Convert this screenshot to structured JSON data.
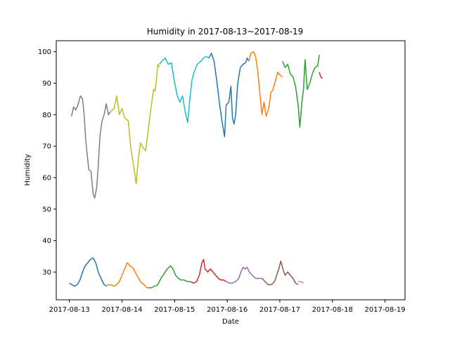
{
  "chart_data": {
    "type": "line",
    "title": "Humidity in 2017-08-13~2017-08-19",
    "xlabel": "Date",
    "ylabel": "Humidity",
    "x_ticks": [
      "2017-08-13",
      "2017-08-14",
      "2017-08-15",
      "2017-08-16",
      "2017-08-17",
      "2017-08-18",
      "2017-08-19"
    ],
    "y_ticks": [
      30,
      40,
      50,
      60,
      70,
      80,
      90,
      100
    ],
    "xlim_days": [
      -0.25,
      6.38
    ],
    "ylim": [
      21.2,
      103.5
    ],
    "grid": false,
    "legend": "none",
    "series": [
      {
        "color": "#7f7f7f",
        "points": [
          [
            0.04,
            79.5
          ],
          [
            0.08,
            82.5
          ],
          [
            0.12,
            81.5
          ],
          [
            0.17,
            83.5
          ],
          [
            0.21,
            86
          ],
          [
            0.25,
            85
          ],
          [
            0.28,
            80
          ],
          [
            0.31,
            72
          ],
          [
            0.34,
            67
          ],
          [
            0.37,
            62.5
          ],
          [
            0.41,
            62
          ],
          [
            0.45,
            55
          ],
          [
            0.48,
            53.5
          ],
          [
            0.52,
            57
          ],
          [
            0.55,
            64
          ],
          [
            0.58,
            73
          ],
          [
            0.62,
            78
          ],
          [
            0.66,
            80
          ],
          [
            0.7,
            83.5
          ],
          [
            0.74,
            80
          ],
          [
            0.78,
            81
          ]
        ]
      },
      {
        "color": "#bcbd22",
        "points": [
          [
            0.78,
            81
          ],
          [
            0.85,
            82
          ],
          [
            0.9,
            86
          ],
          [
            0.95,
            80
          ],
          [
            1.0,
            82
          ],
          [
            1.05,
            79
          ],
          [
            1.12,
            78
          ],
          [
            1.17,
            69
          ],
          [
            1.22,
            64
          ],
          [
            1.27,
            58
          ],
          [
            1.31,
            66
          ],
          [
            1.35,
            71
          ],
          [
            1.4,
            69.5
          ],
          [
            1.45,
            68.5
          ],
          [
            1.5,
            75.5
          ],
          [
            1.55,
            82
          ],
          [
            1.6,
            88
          ],
          [
            1.63,
            87.5
          ],
          [
            1.66,
            92
          ],
          [
            1.68,
            96
          ],
          [
            1.71,
            95
          ]
        ]
      },
      {
        "color": "#17becf",
        "points": [
          [
            1.71,
            96
          ],
          [
            1.76,
            97
          ],
          [
            1.82,
            98
          ],
          [
            1.88,
            96
          ],
          [
            1.94,
            96.5
          ],
          [
            1.99,
            91
          ],
          [
            2.05,
            86
          ],
          [
            2.1,
            84
          ],
          [
            2.15,
            86
          ],
          [
            2.2,
            81
          ],
          [
            2.25,
            77.5
          ],
          [
            2.29,
            85
          ],
          [
            2.33,
            91
          ],
          [
            2.38,
            94
          ],
          [
            2.43,
            96
          ],
          [
            2.5,
            97
          ],
          [
            2.55,
            98
          ],
          [
            2.6,
            98.5
          ],
          [
            2.65,
            98
          ]
        ]
      },
      {
        "color": "#1f77b4",
        "points": [
          [
            2.65,
            98
          ],
          [
            2.7,
            99.5
          ],
          [
            2.75,
            97
          ],
          [
            2.8,
            91
          ],
          [
            2.85,
            84
          ],
          [
            2.9,
            78
          ],
          [
            2.95,
            73
          ],
          [
            2.98,
            83
          ],
          [
            3.03,
            84
          ],
          [
            3.07,
            89
          ],
          [
            3.1,
            79
          ],
          [
            3.13,
            77
          ],
          [
            3.16,
            80
          ],
          [
            3.2,
            90
          ],
          [
            3.25,
            95
          ],
          [
            3.3,
            96
          ],
          [
            3.35,
            96.5
          ],
          [
            3.38,
            98
          ],
          [
            3.41,
            97
          ]
        ]
      },
      {
        "color": "#ff7f0e",
        "points": [
          [
            3.41,
            97
          ],
          [
            3.45,
            99.5
          ],
          [
            3.5,
            100
          ],
          [
            3.54,
            98.5
          ],
          [
            3.58,
            94
          ],
          [
            3.62,
            87
          ],
          [
            3.66,
            80
          ],
          [
            3.7,
            84
          ],
          [
            3.74,
            79.5
          ],
          [
            3.79,
            82
          ],
          [
            3.83,
            87
          ],
          [
            3.87,
            88
          ],
          [
            3.92,
            91
          ],
          [
            3.96,
            93.5
          ],
          [
            4.01,
            92.5
          ],
          [
            4.05,
            92
          ]
        ]
      },
      {
        "color": "#2ca02c",
        "points": [
          [
            4.05,
            97
          ],
          [
            4.1,
            95
          ],
          [
            4.15,
            96
          ],
          [
            4.2,
            93
          ],
          [
            4.25,
            92
          ],
          [
            4.3,
            89
          ],
          [
            4.35,
            83
          ],
          [
            4.38,
            76
          ],
          [
            4.42,
            84
          ],
          [
            4.45,
            88
          ],
          [
            4.48,
            97.5
          ],
          [
            4.52,
            88
          ],
          [
            4.57,
            90
          ],
          [
            4.62,
            93
          ],
          [
            4.67,
            95
          ],
          [
            4.72,
            95.5
          ],
          [
            4.75,
            99
          ]
        ]
      },
      {
        "color": "#d62728",
        "points": [
          [
            4.75,
            93.5
          ],
          [
            4.78,
            92
          ],
          [
            4.81,
            91.5
          ]
        ]
      },
      {
        "color": "#1f77b4",
        "points": [
          [
            0.0,
            26.5
          ],
          [
            0.05,
            26
          ],
          [
            0.1,
            25.5
          ],
          [
            0.15,
            26
          ],
          [
            0.2,
            27.5
          ],
          [
            0.25,
            30
          ],
          [
            0.3,
            32
          ],
          [
            0.35,
            33
          ],
          [
            0.4,
            34
          ],
          [
            0.45,
            34.5
          ],
          [
            0.5,
            33
          ],
          [
            0.55,
            30
          ],
          [
            0.6,
            28
          ],
          [
            0.66,
            26
          ],
          [
            0.72,
            25.5
          ]
        ]
      },
      {
        "color": "#ff7f0e",
        "points": [
          [
            0.72,
            26
          ],
          [
            0.78,
            26
          ],
          [
            0.85,
            25.5
          ],
          [
            0.9,
            26
          ],
          [
            0.95,
            27
          ],
          [
            1.0,
            29
          ],
          [
            1.05,
            31
          ],
          [
            1.1,
            33
          ],
          [
            1.15,
            32
          ],
          [
            1.2,
            31.5
          ],
          [
            1.25,
            30
          ],
          [
            1.3,
            28.5
          ],
          [
            1.35,
            27
          ],
          [
            1.42,
            26
          ],
          [
            1.48,
            25
          ]
        ]
      },
      {
        "color": "#2ca02c",
        "points": [
          [
            1.48,
            25
          ],
          [
            1.55,
            25
          ],
          [
            1.62,
            25.5
          ],
          [
            1.68,
            26
          ],
          [
            1.74,
            28
          ],
          [
            1.8,
            29.5
          ],
          [
            1.86,
            31
          ],
          [
            1.92,
            32
          ],
          [
            1.97,
            31
          ],
          [
            2.02,
            29
          ],
          [
            2.07,
            28
          ],
          [
            2.12,
            27.5
          ],
          [
            2.18,
            27.5
          ],
          [
            2.24,
            27
          ],
          [
            2.3,
            27
          ]
        ]
      },
      {
        "color": "#d62728",
        "points": [
          [
            2.3,
            27
          ],
          [
            2.36,
            26.5
          ],
          [
            2.42,
            27
          ],
          [
            2.47,
            29
          ],
          [
            2.52,
            33
          ],
          [
            2.55,
            34
          ],
          [
            2.58,
            31
          ],
          [
            2.63,
            30
          ],
          [
            2.68,
            31
          ],
          [
            2.73,
            30
          ],
          [
            2.78,
            29
          ],
          [
            2.83,
            28
          ],
          [
            2.88,
            27.5
          ],
          [
            2.93,
            27.5
          ],
          [
            2.98,
            27
          ]
        ]
      },
      {
        "color": "#9467bd",
        "points": [
          [
            2.98,
            27
          ],
          [
            3.04,
            26.5
          ],
          [
            3.1,
            26.5
          ],
          [
            3.16,
            27
          ],
          [
            3.22,
            28
          ],
          [
            3.26,
            30
          ],
          [
            3.3,
            31.5
          ],
          [
            3.34,
            31
          ],
          [
            3.38,
            31.5
          ],
          [
            3.42,
            30
          ],
          [
            3.48,
            29
          ],
          [
            3.54,
            28
          ],
          [
            3.6,
            28
          ],
          [
            3.66,
            28
          ]
        ]
      },
      {
        "color": "#8c564b",
        "points": [
          [
            3.66,
            28
          ],
          [
            3.72,
            27
          ],
          [
            3.78,
            26
          ],
          [
            3.84,
            26
          ],
          [
            3.9,
            27
          ],
          [
            3.94,
            29
          ],
          [
            3.98,
            31
          ],
          [
            4.02,
            33.5
          ],
          [
            4.06,
            31
          ],
          [
            4.1,
            29
          ],
          [
            4.15,
            30
          ],
          [
            4.2,
            29
          ],
          [
            4.25,
            28
          ],
          [
            4.3,
            26.5
          ],
          [
            4.35,
            26
          ]
        ]
      },
      {
        "color": "#e377c2",
        "points": [
          [
            4.35,
            27
          ],
          [
            4.4,
            27
          ],
          [
            4.45,
            26.5
          ]
        ]
      }
    ]
  }
}
